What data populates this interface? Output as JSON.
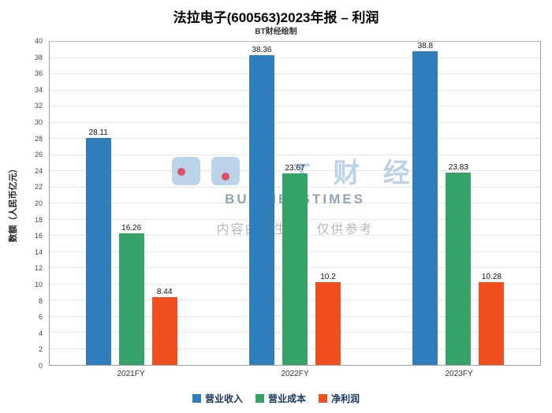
{
  "title": "法拉电子(600563)2023年报 – 利润",
  "subtitle": "BT财经绘制",
  "watermark": {
    "logo_letters": "B T 财 经",
    "brand": "BUSINESSTIMES",
    "notice": "内容由AI生成，仅供参考"
  },
  "chart_data": {
    "type": "bar",
    "categories": [
      "2021FY",
      "2022FY",
      "2023FY"
    ],
    "series": [
      {
        "name": "营业收入",
        "color": "#2e7ebc",
        "values": [
          28.11,
          38.36,
          38.8
        ]
      },
      {
        "name": "营业成本",
        "color": "#36a368",
        "values": [
          16.26,
          23.67,
          23.83
        ]
      },
      {
        "name": "净利润",
        "color": "#f1501e",
        "values": [
          8.44,
          10.2,
          10.28
        ]
      }
    ],
    "xlabel": "",
    "ylabel": "数额（人民币亿元）",
    "ylim": [
      0,
      40
    ],
    "ytick_step": 2,
    "grid": true,
    "legend_position": "bottom"
  }
}
